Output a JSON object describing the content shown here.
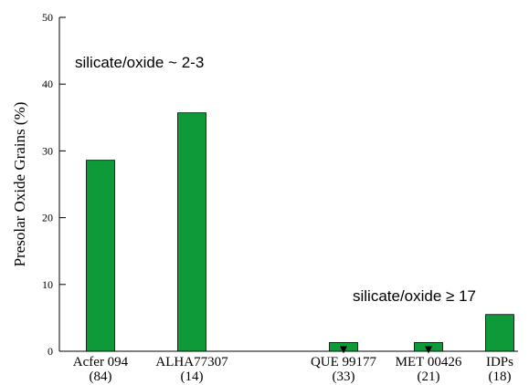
{
  "chart_data": {
    "type": "bar",
    "ylabel": "Presolar Oxide Grains (%)",
    "ylim": [
      0,
      50
    ],
    "yticks": [
      "0",
      "10",
      "20",
      "30",
      "40",
      "50"
    ],
    "categories": [
      {
        "name": "Acfer 094",
        "count": "(84)"
      },
      {
        "name": "ALHA77307",
        "count": "(14)"
      },
      {
        "name": "QUE 99177",
        "count": "(33)"
      },
      {
        "name": "MET 00426",
        "count": "(21)"
      },
      {
        "name": "IDPs",
        "count": "(18)"
      }
    ],
    "values": [
      28.6,
      35.7,
      1.3,
      1.3,
      5.5
    ],
    "upper_limit_markers": [
      false,
      false,
      true,
      true,
      false
    ],
    "bar_color": "#0f9a3a",
    "annotations": [
      "silicate/oxide ~ 2-3",
      "silicate/oxide ≥ 17"
    ]
  }
}
